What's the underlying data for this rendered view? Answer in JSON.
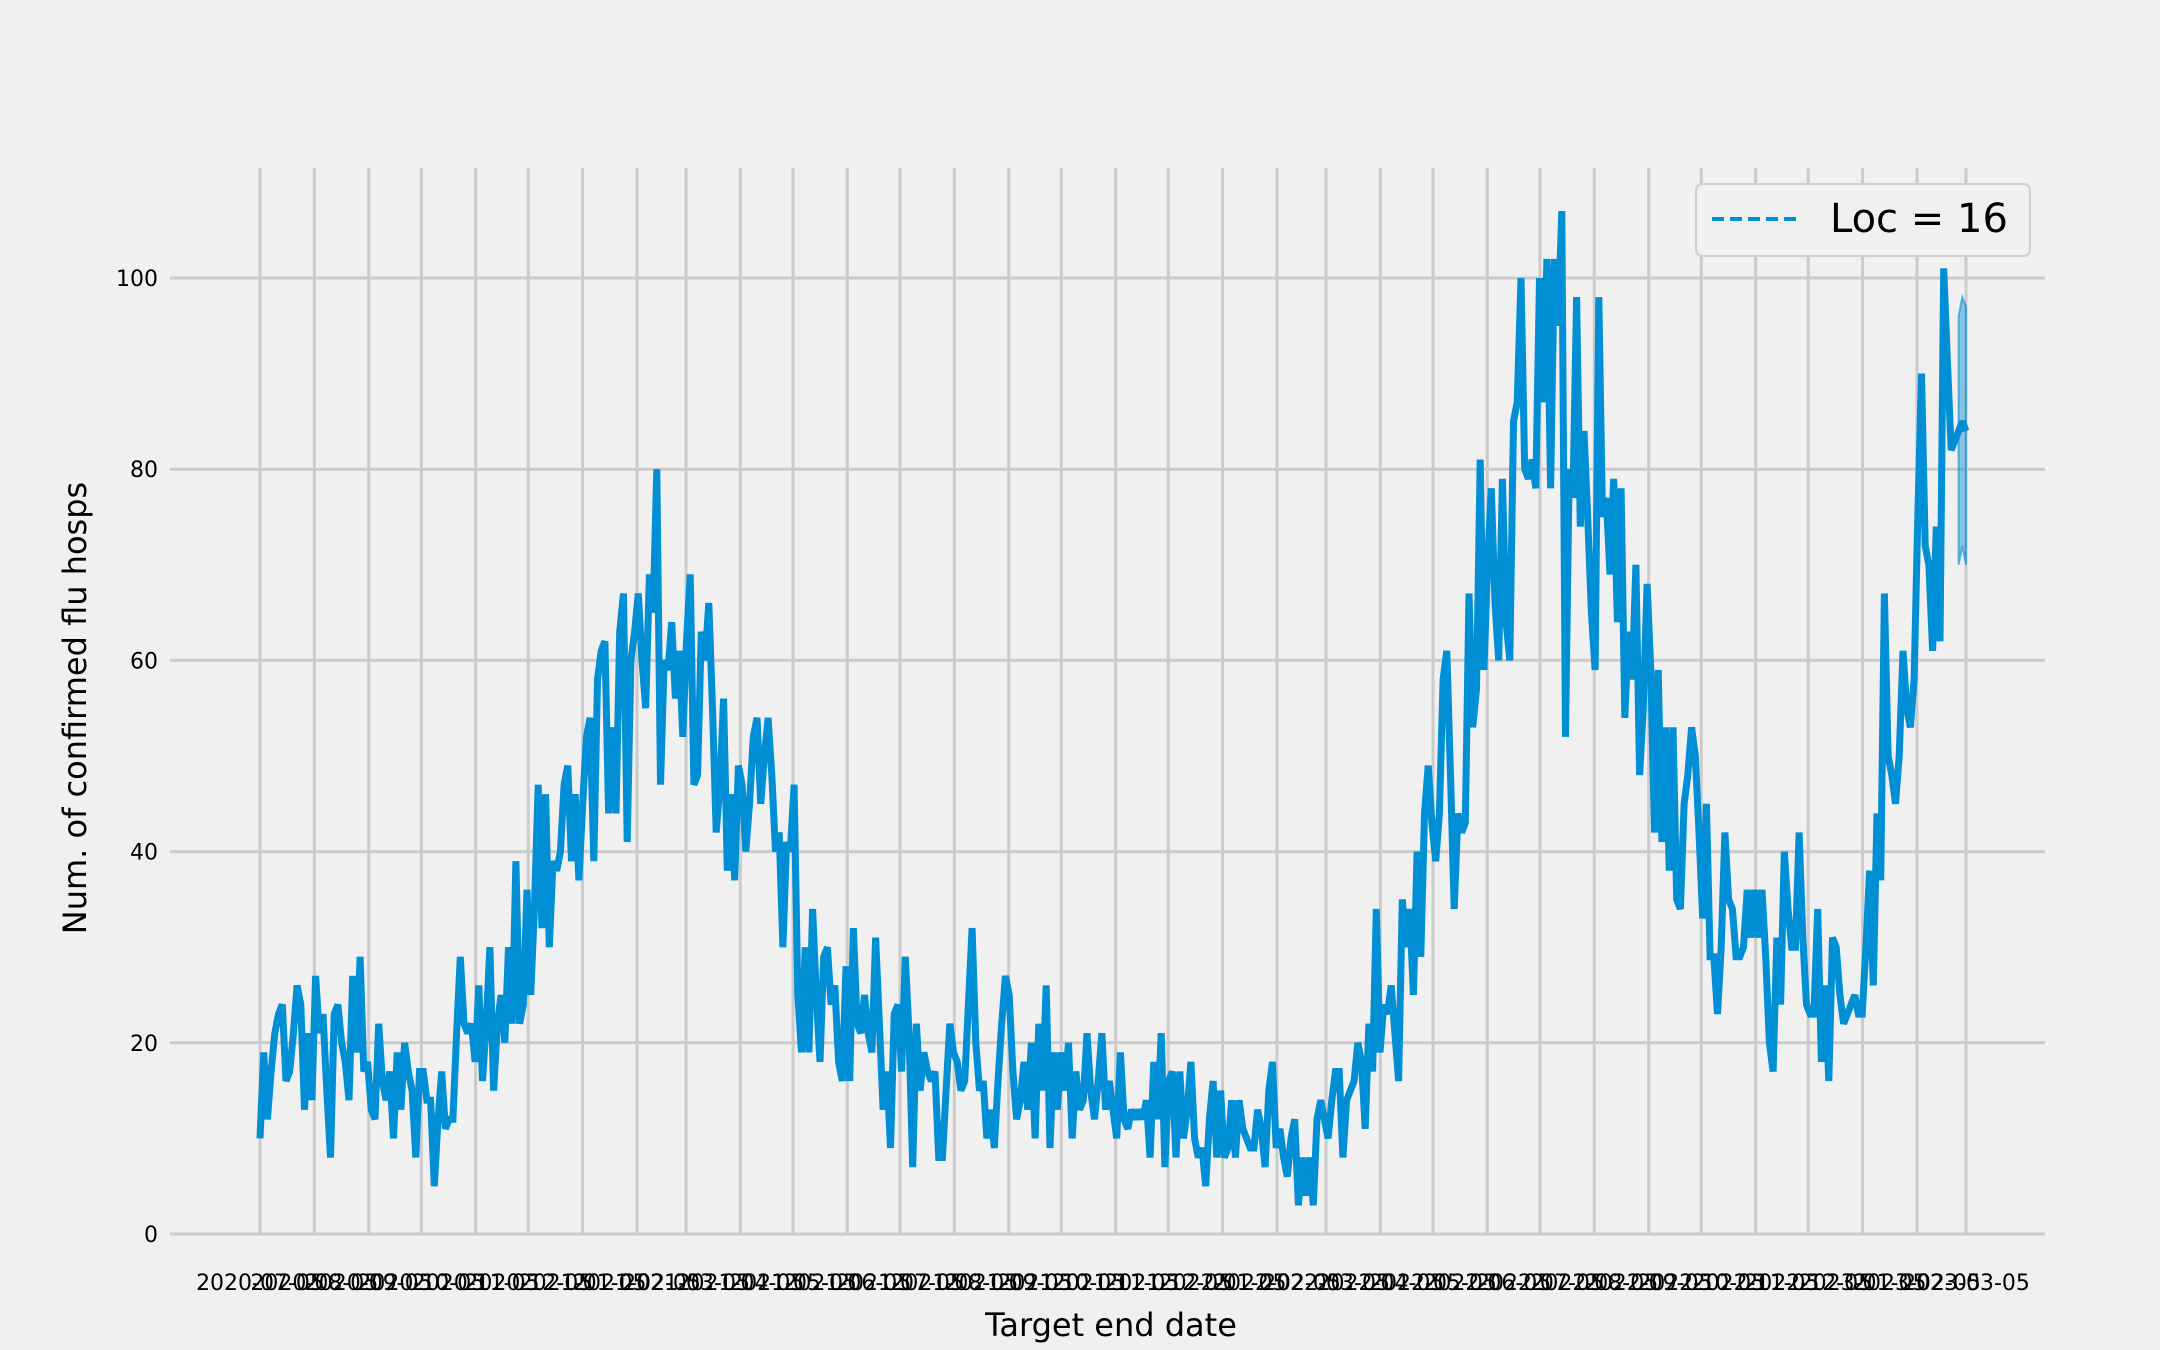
{
  "chart_data": {
    "type": "line",
    "title": "",
    "xlabel": "Target end date",
    "ylabel": "Num. of confirmed flu hosps",
    "ylim": [
      0,
      110
    ],
    "y_ticks": [
      0,
      20,
      40,
      60,
      80,
      100
    ],
    "x_start_date": "2020-07-05",
    "x_end_date": "2023-03-05",
    "x_ticks": [
      "2020-07-05",
      "2020-08-05",
      "2020-09-05",
      "2020-10-05",
      "2020-11-05",
      "2020-12-05",
      "2021-01-05",
      "2021-02-05",
      "2021-03-05",
      "2021-04-05",
      "2021-05-05",
      "2021-06-05",
      "2021-07-05",
      "2021-08-05",
      "2021-09-05",
      "2021-10-05",
      "2021-11-05",
      "2021-12-05",
      "2022-01-05",
      "2022-02-05",
      "2022-03-05",
      "2022-04-05",
      "2022-05-05",
      "2022-06-05",
      "2022-07-05",
      "2022-08-05",
      "2022-09-05",
      "2022-10-05",
      "2022-11-05",
      "2022-12-05",
      "2023-01-05",
      "2023-02-05",
      "2023-03-05"
    ],
    "grid": true,
    "legend_position": "top-right",
    "legend": [
      {
        "label": "Loc = 16",
        "style": "dashed",
        "color": "#008fd5"
      }
    ],
    "series": [
      {
        "name": "Loc = 16",
        "color": "#008fd5",
        "values": [
          10,
          19,
          12,
          17,
          21,
          23,
          24,
          16,
          17,
          21,
          26,
          24,
          13,
          21,
          14,
          27,
          21,
          23,
          15,
          8,
          23,
          24,
          20,
          18,
          14,
          27,
          19,
          29,
          17,
          18,
          13,
          12,
          22,
          16,
          14,
          17,
          10,
          19,
          13,
          20,
          17,
          15,
          8,
          17,
          17,
          14,
          14,
          5,
          12,
          17,
          11,
          12,
          12,
          21,
          29,
          22,
          21,
          22,
          18,
          26,
          16,
          22,
          30,
          15,
          22,
          25,
          20,
          30,
          22,
          39,
          22,
          24,
          36,
          25,
          34,
          47,
          32,
          46,
          30,
          39,
          38,
          40,
          47,
          49,
          39,
          46,
          37,
          45,
          52,
          54,
          39,
          58,
          61,
          62,
          44,
          53,
          44,
          63,
          67,
          41,
          60,
          63,
          67,
          60,
          55,
          69,
          65,
          80,
          47,
          60,
          59,
          64,
          56,
          61,
          52,
          62,
          69,
          47,
          48,
          63,
          60,
          66,
          55,
          42,
          47,
          56,
          38,
          46,
          37,
          49,
          47,
          40,
          45,
          52,
          54,
          45,
          50,
          54,
          48,
          40,
          42,
          30,
          41,
          40,
          47,
          25,
          19,
          30,
          19,
          34,
          25,
          18,
          29,
          30,
          24,
          26,
          18,
          16,
          28,
          16,
          32,
          22,
          21,
          25,
          21,
          19,
          31,
          22,
          13,
          17,
          9,
          23,
          24,
          17,
          29,
          21,
          7,
          22,
          15,
          19,
          17,
          16,
          17,
          8,
          8,
          15,
          22,
          19,
          18,
          15,
          16,
          24,
          32,
          20,
          15,
          16,
          10,
          13,
          9,
          16,
          22,
          27,
          25,
          17,
          12,
          14,
          18,
          13,
          20,
          10,
          22,
          15,
          26,
          9,
          19,
          13,
          19,
          15,
          20,
          10,
          17,
          13,
          14,
          21,
          15,
          12,
          16,
          21,
          13,
          16,
          13,
          10,
          19,
          12,
          11,
          13,
          12,
          13,
          12,
          14,
          8,
          18,
          12,
          21,
          7,
          16,
          17,
          8,
          17,
          10,
          13,
          18,
          10,
          8,
          9,
          5,
          12,
          16,
          8,
          15,
          8,
          9,
          14,
          8,
          14,
          11,
          10,
          9,
          9,
          13,
          11,
          7,
          15,
          18,
          9,
          11,
          8,
          6,
          10,
          12,
          3,
          8,
          4,
          8,
          3,
          12,
          14,
          12,
          10,
          14,
          17,
          17,
          8,
          14,
          15,
          16,
          20,
          18,
          11,
          22,
          17,
          34,
          19,
          24,
          23,
          26,
          21,
          16,
          35,
          30,
          34,
          25,
          40,
          29,
          44,
          49,
          43,
          39,
          44,
          58,
          61,
          48,
          34,
          44,
          42,
          43,
          67,
          53,
          57,
          81,
          59,
          70,
          78,
          66,
          60,
          79,
          64,
          60,
          85,
          87,
          100,
          80,
          79,
          81,
          78,
          100,
          87,
          102,
          78,
          102,
          95,
          107,
          52,
          80,
          77,
          98,
          74,
          84,
          75,
          65,
          59,
          98,
          75,
          77,
          69,
          79,
          64,
          78,
          54,
          63,
          58,
          70,
          48,
          55,
          68,
          59,
          42,
          59,
          41,
          53,
          38,
          53,
          35,
          34,
          45,
          48,
          53,
          50,
          42,
          33,
          45,
          29,
          29,
          23,
          30,
          42,
          35,
          34,
          29,
          29,
          30,
          36,
          31,
          36,
          31,
          36,
          29,
          20,
          17,
          31,
          24,
          40,
          34,
          30,
          30,
          42,
          31,
          24,
          23,
          23,
          34,
          18,
          26,
          16,
          31,
          30,
          25,
          22,
          23,
          24,
          25,
          23,
          23,
          30,
          38,
          26,
          44,
          37,
          67,
          50,
          48,
          45,
          50,
          61,
          55,
          53,
          58,
          75,
          90,
          72,
          70,
          61,
          74,
          62,
          101,
          91,
          82,
          83,
          84,
          85,
          84
        ],
        "interval_tail_points": 3,
        "interval_lower": [
          70,
          72,
          70
        ],
        "interval_upper": [
          96,
          98,
          97
        ]
      }
    ]
  }
}
